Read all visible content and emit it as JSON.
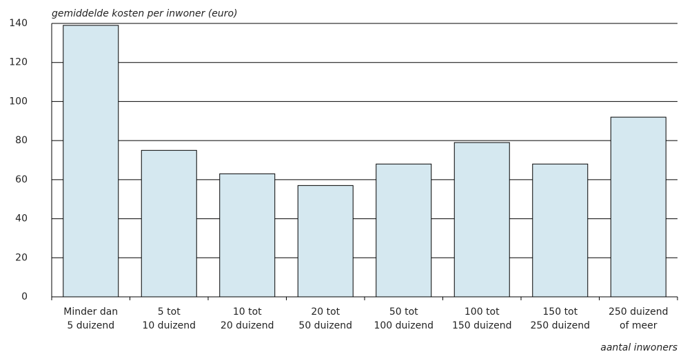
{
  "chart_data": {
    "type": "bar",
    "title": "gemiddelde kosten per inwoner (euro)",
    "x_label": "aantal inwoners",
    "categories": [
      "Minder dan\n5 duizend",
      "5 tot\n10 duizend",
      "10 tot\n20 duizend",
      "20 tot\n50 duizend",
      "50 tot\n100 duizend",
      "100 tot\n150 duizend",
      "150 tot\n250 duizend",
      "250 duizend\nof meer"
    ],
    "values": [
      139,
      75,
      63,
      57,
      68,
      79,
      68,
      92
    ],
    "color": "#d5e8f0",
    "ylim": [
      0,
      140
    ],
    "yticks": [
      0,
      20,
      40,
      60,
      80,
      100,
      120,
      140
    ],
    "grid": true
  }
}
